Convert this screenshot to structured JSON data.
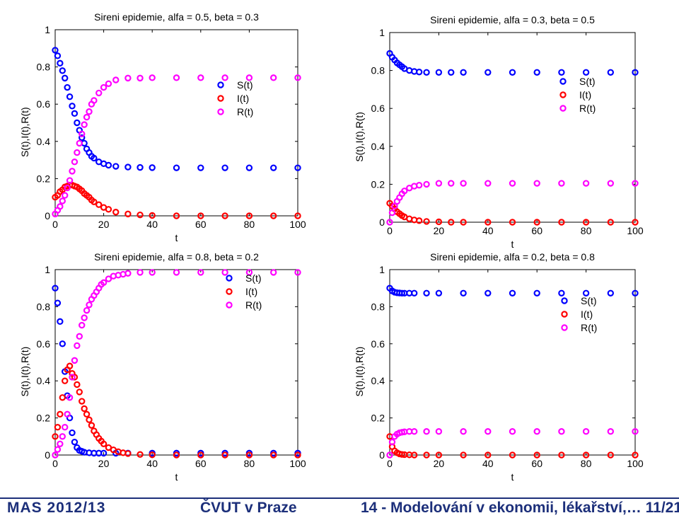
{
  "footer": {
    "left": "MAS 2012/13",
    "center": "ČVUT v Praze",
    "right": "14 - Modelování v ekonomii, lékařství,… 11/21"
  },
  "colors": {
    "S": "#0000ff",
    "I": "#ff0000",
    "R": "#ff00ff",
    "footer": "#1c2f7a"
  },
  "chart_data": [
    {
      "type": "scatter",
      "title": "Sireni epidemie, alfa = 0.5, beta = 0.3",
      "xlabel": "t",
      "ylabel": "S(t),I(t),R(t)",
      "xlim": [
        0,
        100
      ],
      "ylim": [
        0,
        1
      ],
      "xticks": [
        "0",
        "20",
        "40",
        "60",
        "80",
        "100"
      ],
      "yticks": [
        "0",
        "0.2",
        "0.4",
        "0.6",
        "0.8",
        "1"
      ],
      "legend": [
        "S(t)",
        "I(t)",
        "R(t)"
      ],
      "legend_position": "right",
      "grid": false,
      "series": [
        {
          "name": "S(t)",
          "x": [
            0,
            1,
            2,
            3,
            4,
            5,
            6,
            7,
            8,
            9,
            10,
            11,
            12,
            13,
            14,
            15,
            16,
            18,
            20,
            22,
            25,
            30,
            35,
            40,
            50,
            60,
            70,
            80,
            90,
            100
          ],
          "values": [
            0.89,
            0.86,
            0.82,
            0.78,
            0.74,
            0.69,
            0.64,
            0.59,
            0.55,
            0.5,
            0.46,
            0.42,
            0.39,
            0.36,
            0.34,
            0.32,
            0.31,
            0.29,
            0.28,
            0.272,
            0.266,
            0.262,
            0.26,
            0.259,
            0.258,
            0.258,
            0.258,
            0.258,
            0.258,
            0.258
          ]
        },
        {
          "name": "I(t)",
          "x": [
            0,
            1,
            2,
            3,
            4,
            5,
            6,
            7,
            8,
            9,
            10,
            11,
            12,
            13,
            14,
            15,
            16,
            18,
            20,
            22,
            25,
            30,
            35,
            40,
            50,
            60,
            70,
            80,
            90,
            100
          ],
          "values": [
            0.1,
            0.11,
            0.13,
            0.14,
            0.155,
            0.16,
            0.165,
            0.165,
            0.16,
            0.155,
            0.145,
            0.135,
            0.12,
            0.11,
            0.1,
            0.085,
            0.075,
            0.06,
            0.045,
            0.035,
            0.02,
            0.01,
            0.005,
            0.002,
            0,
            0,
            0,
            0,
            0,
            0
          ]
        },
        {
          "name": "R(t)",
          "x": [
            0,
            1,
            2,
            3,
            4,
            5,
            6,
            7,
            8,
            9,
            10,
            11,
            12,
            13,
            14,
            15,
            16,
            18,
            20,
            22,
            25,
            30,
            35,
            40,
            50,
            60,
            70,
            80,
            90,
            100
          ],
          "values": [
            0.01,
            0.03,
            0.05,
            0.08,
            0.11,
            0.15,
            0.19,
            0.24,
            0.29,
            0.34,
            0.39,
            0.44,
            0.49,
            0.53,
            0.56,
            0.6,
            0.62,
            0.66,
            0.69,
            0.71,
            0.73,
            0.74,
            0.74,
            0.742,
            0.742,
            0.742,
            0.742,
            0.742,
            0.742,
            0.742
          ]
        }
      ]
    },
    {
      "type": "scatter",
      "title": "Sireni epidemie, alfa = 0.3, beta = 0.5",
      "xlabel": "t",
      "ylabel": "S(t),I(t),R(t)",
      "xlim": [
        0,
        100
      ],
      "ylim": [
        0,
        1
      ],
      "xticks": [
        "0",
        "20",
        "40",
        "60",
        "80",
        "100"
      ],
      "yticks": [
        "0",
        "0.2",
        "0.4",
        "0.6",
        "0.8",
        "1"
      ],
      "legend": [
        "S(t)",
        "I(t)",
        "R(t)"
      ],
      "legend_position": "right",
      "grid": false,
      "series": [
        {
          "name": "S(t)",
          "x": [
            0,
            1,
            2,
            3,
            4,
            5,
            6,
            8,
            10,
            12,
            15,
            20,
            25,
            30,
            40,
            50,
            60,
            70,
            80,
            90,
            100
          ],
          "values": [
            0.89,
            0.87,
            0.855,
            0.84,
            0.83,
            0.82,
            0.81,
            0.8,
            0.795,
            0.792,
            0.79,
            0.79,
            0.79,
            0.79,
            0.79,
            0.79,
            0.79,
            0.79,
            0.79,
            0.79,
            0.79
          ]
        },
        {
          "name": "I(t)",
          "x": [
            0,
            1,
            2,
            3,
            4,
            5,
            6,
            8,
            10,
            12,
            15,
            20,
            25,
            30,
            40,
            50,
            60,
            70,
            80,
            90,
            100
          ],
          "values": [
            0.1,
            0.085,
            0.07,
            0.055,
            0.045,
            0.035,
            0.028,
            0.018,
            0.012,
            0.008,
            0.004,
            0.002,
            0,
            0,
            0,
            0,
            0,
            0,
            0,
            0,
            0
          ]
        },
        {
          "name": "R(t)",
          "x": [
            0,
            1,
            2,
            3,
            4,
            5,
            6,
            8,
            10,
            12,
            15,
            20,
            25,
            30,
            40,
            50,
            60,
            70,
            80,
            90,
            100
          ],
          "values": [
            0.0,
            0.05,
            0.085,
            0.11,
            0.13,
            0.15,
            0.165,
            0.18,
            0.19,
            0.195,
            0.2,
            0.205,
            0.205,
            0.205,
            0.205,
            0.205,
            0.205,
            0.205,
            0.205,
            0.205,
            0.205
          ]
        }
      ]
    },
    {
      "type": "scatter",
      "title": "Sireni epidemie, alfa = 0.8, beta = 0.2",
      "xlabel": "t",
      "ylabel": "S(t),I(t),R(t)",
      "xlim": [
        0,
        100
      ],
      "ylim": [
        0,
        1
      ],
      "xticks": [
        "0",
        "20",
        "40",
        "60",
        "80",
        "100"
      ],
      "yticks": [
        "0",
        "0.2",
        "0.4",
        "0.6",
        "0.8",
        "1"
      ],
      "legend": [
        "S(t)",
        "I(t)",
        "R(t)"
      ],
      "legend_position": "right",
      "grid": false,
      "series": [
        {
          "name": "S(t)",
          "x": [
            0,
            1,
            2,
            3,
            4,
            5,
            6,
            7,
            8,
            9,
            10,
            11,
            12,
            14,
            16,
            18,
            20,
            25,
            30,
            40,
            50,
            60,
            70,
            80,
            90,
            100
          ],
          "values": [
            0.9,
            0.82,
            0.72,
            0.6,
            0.45,
            0.32,
            0.2,
            0.12,
            0.07,
            0.04,
            0.025,
            0.02,
            0.015,
            0.012,
            0.01,
            0.01,
            0.01,
            0.01,
            0.01,
            0.01,
            0.01,
            0.01,
            0.01,
            0.01,
            0.01,
            0.01
          ]
        },
        {
          "name": "I(t)",
          "x": [
            0,
            1,
            2,
            3,
            4,
            5,
            6,
            7,
            8,
            9,
            10,
            11,
            12,
            13,
            14,
            15,
            16,
            17,
            18,
            19,
            20,
            22,
            24,
            26,
            28,
            30,
            35,
            40,
            50,
            60,
            70,
            80,
            90,
            100
          ],
          "values": [
            0.1,
            0.15,
            0.22,
            0.31,
            0.4,
            0.46,
            0.48,
            0.44,
            0.42,
            0.38,
            0.34,
            0.29,
            0.25,
            0.22,
            0.19,
            0.16,
            0.13,
            0.11,
            0.09,
            0.075,
            0.06,
            0.04,
            0.028,
            0.018,
            0.012,
            0.008,
            0.003,
            0.001,
            0,
            0,
            0,
            0,
            0,
            0
          ]
        },
        {
          "name": "R(t)",
          "x": [
            0,
            1,
            2,
            3,
            4,
            5,
            6,
            7,
            8,
            9,
            10,
            11,
            12,
            13,
            14,
            15,
            16,
            17,
            18,
            19,
            20,
            22,
            24,
            26,
            28,
            30,
            35,
            40,
            50,
            60,
            70,
            80,
            90,
            100
          ],
          "values": [
            0.0,
            0.03,
            0.06,
            0.1,
            0.15,
            0.22,
            0.31,
            0.42,
            0.51,
            0.59,
            0.64,
            0.7,
            0.74,
            0.78,
            0.81,
            0.84,
            0.86,
            0.88,
            0.9,
            0.92,
            0.93,
            0.95,
            0.965,
            0.97,
            0.975,
            0.98,
            0.985,
            0.985,
            0.985,
            0.985,
            0.985,
            0.985,
            0.985,
            0.985
          ]
        }
      ]
    },
    {
      "type": "scatter",
      "title": "Sireni epidemie, alfa = 0.2, beta = 0.8",
      "xlabel": "t",
      "ylabel": "S(t),I(t),R(t)",
      "xlim": [
        0,
        100
      ],
      "ylim": [
        0,
        1
      ],
      "xticks": [
        "0",
        "20",
        "40",
        "60",
        "80",
        "100"
      ],
      "yticks": [
        "0",
        "0.2",
        "0.4",
        "0.6",
        "0.8",
        "1"
      ],
      "legend": [
        "S(t)",
        "I(t)",
        "R(t)"
      ],
      "legend_position": "right",
      "grid": false,
      "series": [
        {
          "name": "S(t)",
          "x": [
            0,
            1,
            2,
            3,
            4,
            5,
            6,
            8,
            10,
            15,
            20,
            30,
            40,
            50,
            60,
            70,
            80,
            90,
            100
          ],
          "values": [
            0.9,
            0.885,
            0.878,
            0.875,
            0.874,
            0.873,
            0.873,
            0.873,
            0.873,
            0.873,
            0.873,
            0.873,
            0.873,
            0.873,
            0.873,
            0.873,
            0.873,
            0.873,
            0.873
          ]
        },
        {
          "name": "I(t)",
          "x": [
            0,
            1,
            2,
            3,
            4,
            5,
            6,
            8,
            10,
            15,
            20,
            30,
            40,
            50,
            60,
            70,
            80,
            90,
            100
          ],
          "values": [
            0.1,
            0.045,
            0.022,
            0.012,
            0.006,
            0.003,
            0.002,
            0.001,
            0,
            0,
            0,
            0,
            0,
            0,
            0,
            0,
            0,
            0,
            0
          ]
        },
        {
          "name": "R(t)",
          "x": [
            0,
            1,
            2,
            3,
            4,
            5,
            6,
            8,
            10,
            15,
            20,
            30,
            40,
            50,
            60,
            70,
            80,
            90,
            100
          ],
          "values": [
            0.0,
            0.07,
            0.1,
            0.113,
            0.12,
            0.123,
            0.125,
            0.127,
            0.127,
            0.127,
            0.127,
            0.127,
            0.127,
            0.127,
            0.127,
            0.127,
            0.127,
            0.127,
            0.127
          ]
        }
      ]
    }
  ]
}
